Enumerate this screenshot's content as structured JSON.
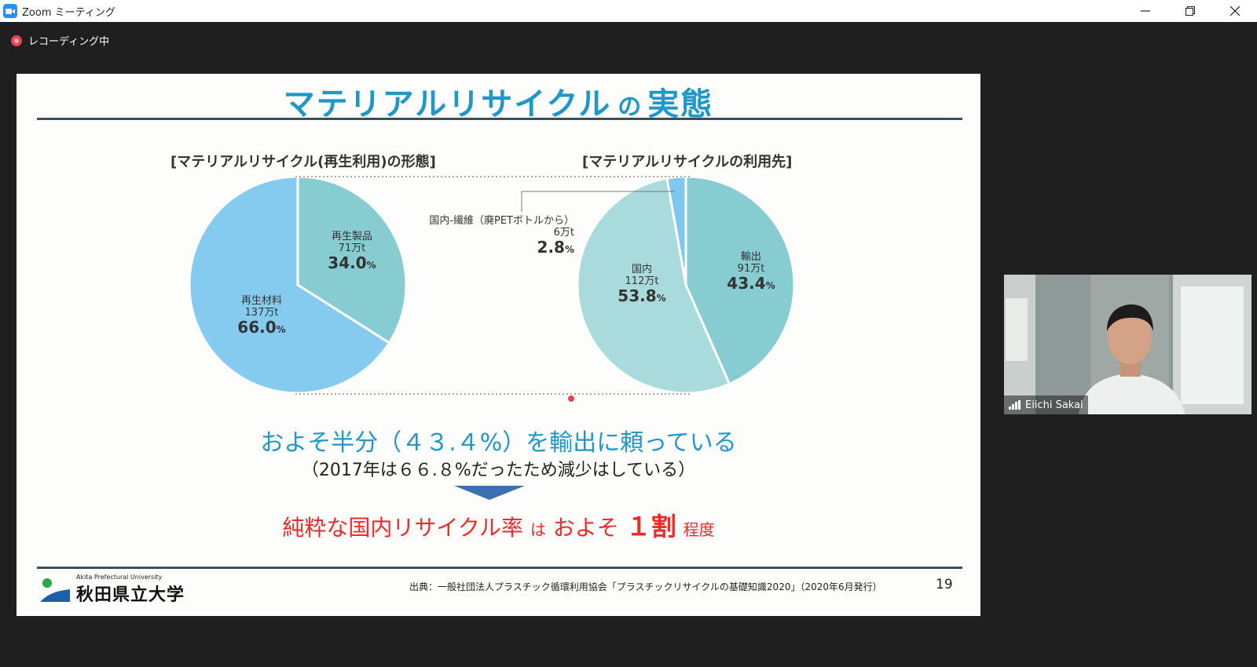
{
  "window": {
    "title": "Zoom ミーティング",
    "recording_label": "レコーディング中"
  },
  "slide": {
    "title_main": "マテリアルリサイクル",
    "title_connector": "の",
    "title_end": "実態",
    "left_heading": "[マテリアルリサイクル(再生利用)の形態]",
    "right_heading": "[マテリアルリサイクルの利用先]",
    "message_1": "およそ半分（４３.４%）を輸出に頼っている",
    "message_2": "（2017年は６６.８%だったため減少はしている）",
    "conclusion": {
      "part1": "純粋な国内リサイクル率",
      "part2": "は",
      "part3": "およそ",
      "part4": "１割",
      "part5": "程度"
    },
    "logo_sub": "Akita Prefectural University",
    "logo_main": "秋田県立大学",
    "source": "出典：一般社団法人プラスチック循環利用協会「プラスチックリサイクルの基礎知識2020」（2020年6月発行）",
    "page_number": "19"
  },
  "chart_data": [
    {
      "type": "pie",
      "title": "[マテリアルリサイクル(再生利用)の形態]",
      "slices": [
        {
          "name": "再生製品",
          "amount": "71万t",
          "percent": 34.0,
          "color": "#86ccd0"
        },
        {
          "name": "再生材料",
          "amount": "137万t",
          "percent": 66.0,
          "color": "#85cbef"
        }
      ]
    },
    {
      "type": "pie",
      "title": "[マテリアルリサイクルの利用先]",
      "slices": [
        {
          "name": "輸出",
          "amount": "91万t",
          "percent": 43.4,
          "color": "#86ccd0"
        },
        {
          "name": "国内",
          "amount": "112万t",
          "percent": 53.8,
          "color": "#a9dadc"
        },
        {
          "name": "国内-繊維（廃PETボトルから）",
          "amount": "6万t",
          "percent": 2.8,
          "color": "#7fc7ee"
        }
      ]
    }
  ],
  "participant": {
    "name": "Eiichi Sakai"
  },
  "colors": {
    "accent_blue": "#1f97c9",
    "emphasis_red": "#ee2b2b",
    "zoom_blue": "#2d8cff"
  }
}
